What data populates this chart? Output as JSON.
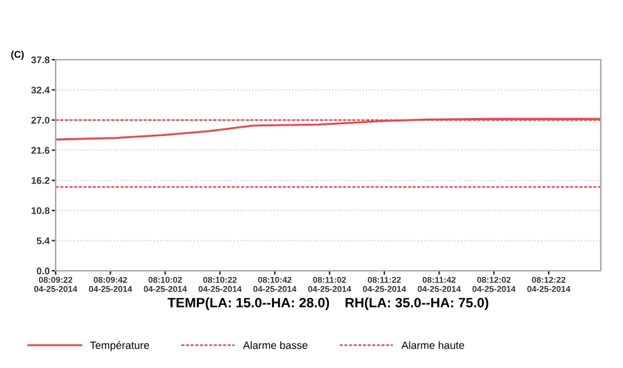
{
  "chart_data": {
    "type": "line",
    "ylabel": "(C)",
    "xlabel": "TEMP(LA: 15.0--HA: 28.0)    RH(LA: 35.0--HA: 75.0)",
    "x": [
      "2014-04-25T08:09:22",
      "2014-04-25T08:09:44",
      "2014-04-25T08:10:01",
      "2014-04-25T08:10:18",
      "2014-04-25T08:10:34",
      "2014-04-25T08:10:58",
      "2014-04-25T08:11:21",
      "2014-04-25T08:11:38",
      "2014-04-25T08:12:01",
      "2014-04-25T08:12:41"
    ],
    "series": [
      {
        "name": "Température",
        "color": "#e8464b",
        "values": [
          23.5,
          23.8,
          24.3,
          25.0,
          26.0,
          26.2,
          26.8,
          27.1,
          27.2,
          27.2
        ]
      }
    ],
    "ref_lines": [
      {
        "axis": "y",
        "value": 15.0,
        "label": "Alarme basse",
        "color": "#e8464b",
        "line_style": "dashed"
      },
      {
        "axis": "y",
        "value": 27.0,
        "label": "Alarme haute",
        "color": "#e8464b",
        "line_style": "dashed"
      }
    ],
    "xlim": [
      "2014-04-25T08:09:22",
      "2014-04-25T08:12:41"
    ],
    "xticks": [
      {
        "value": "2014-04-25T08:09:22",
        "label": "08:09:22\n04-25-2014"
      },
      {
        "value": "2014-04-25T08:09:42",
        "label": "08:09:42\n04-25-2014"
      },
      {
        "value": "2014-04-25T08:10:02",
        "label": "08:10:02\n04-25-2014"
      },
      {
        "value": "2014-04-25T08:10:22",
        "label": "08:10:22\n04-25-2014"
      },
      {
        "value": "2014-04-25T08:10:42",
        "label": "08:10:42\n04-25-2014"
      },
      {
        "value": "2014-04-25T08:11:02",
        "label": "08:11:02\n04-25-2014"
      },
      {
        "value": "2014-04-25T08:11:22",
        "label": "08:11:22\n04-25-2014"
      },
      {
        "value": "2014-04-25T08:11:42",
        "label": "08:11:42\n04-25-2014"
      },
      {
        "value": "2014-04-25T08:12:02",
        "label": "08:12:02\n04-25-2014"
      },
      {
        "value": "2014-04-25T08:12:22",
        "label": "08:12:22\n04-25-2014"
      }
    ],
    "ylim": [
      0,
      37.8
    ],
    "yticks": [
      {
        "value": 0,
        "label": "0.0"
      },
      5.4,
      10.8,
      16.2,
      21.6,
      {
        "value": 27,
        "label": "27.0"
      },
      32.4,
      37.8
    ],
    "grid": "y",
    "legend": "bottom",
    "marker": "none",
    "line_style": "solid"
  }
}
